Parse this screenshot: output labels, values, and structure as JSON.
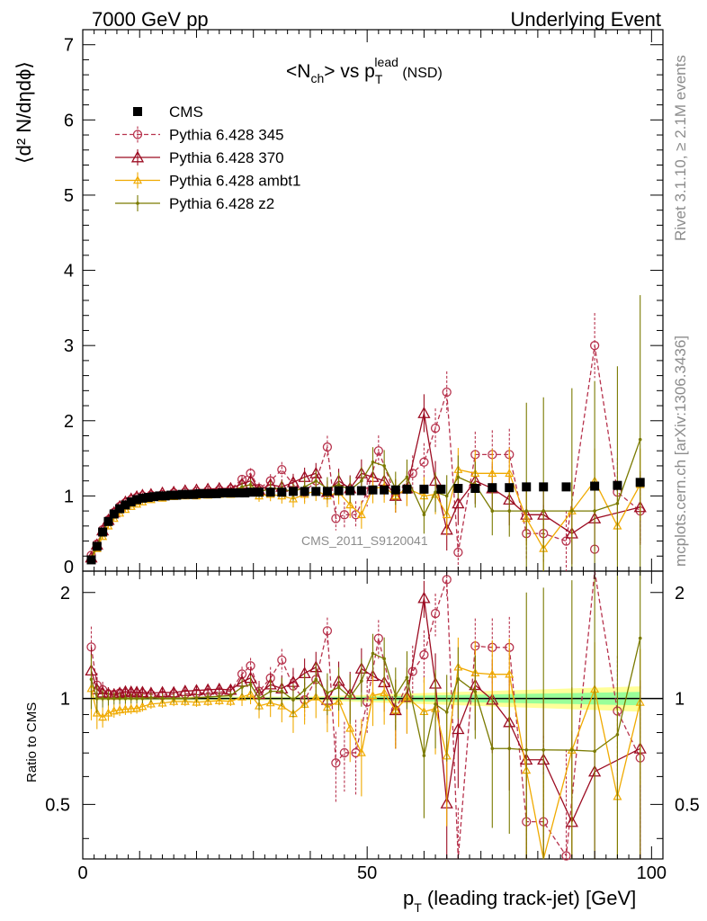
{
  "header": {
    "left": "7000 GeV pp",
    "right": "Underlying Event"
  },
  "title": {
    "main": "<N",
    "main_sub": "ch",
    "main_mid": "> vs p",
    "main_sub2": "T",
    "main_sup": "lead",
    "main_tail": " (NSD)"
  },
  "side_labels": {
    "rivet": "Rivet 3.1.10, ≥ 2.1M events",
    "mcplots": "mcplots.cern.ch [arXiv:1306.3436]"
  },
  "watermark": "CMS_2011_S9120041",
  "y_label_top": "⟨d² N/dηdϕ⟩",
  "y_label_bottom": "Ratio to CMS",
  "x_label": "p",
  "x_label_sub": "T",
  "x_label_tail": " (leading track-jet) [GeV]",
  "colors": {
    "cms": "#000000",
    "p345": "#b7334d",
    "p370": "#9c0c22",
    "ambt1": "#f0aa00",
    "z2": "#7a7a00",
    "band_outer": "#ffff99",
    "band_inner": "#99ff99"
  },
  "chart_data": {
    "type": "scatter",
    "xlim": [
      0,
      102
    ],
    "ylim_main": [
      0,
      7.2
    ],
    "ylim_ratio": [
      0.35,
      2.3
    ],
    "x_ticks": [
      "0",
      "50",
      "100"
    ],
    "y_ticks_main": [
      "0",
      "1",
      "2",
      "3",
      "4",
      "5",
      "6",
      "7"
    ],
    "y_ticks_ratio": [
      "0.5",
      "1",
      "2"
    ],
    "series": [
      {
        "name": "CMS",
        "x": [
          1.5,
          2.5,
          3.5,
          4.5,
          5.5,
          6.5,
          7.5,
          8.5,
          9.5,
          10.5,
          11.5,
          12.5,
          13.5,
          14.5,
          15.5,
          16.5,
          17.5,
          18.5,
          19.5,
          20.5,
          21.5,
          22.5,
          23.5,
          24.5,
          25.5,
          26.5,
          27.5,
          28.5,
          29.5,
          31,
          33,
          35,
          37,
          39,
          41,
          43,
          45,
          47,
          49,
          51,
          53,
          55,
          57,
          60,
          63,
          66,
          69,
          72,
          75,
          78,
          81,
          85,
          90,
          94,
          98
        ],
        "y": [
          0.15,
          0.33,
          0.52,
          0.66,
          0.76,
          0.83,
          0.88,
          0.92,
          0.95,
          0.97,
          0.98,
          0.99,
          1.0,
          1.0,
          1.01,
          1.01,
          1.02,
          1.02,
          1.02,
          1.03,
          1.03,
          1.03,
          1.03,
          1.04,
          1.04,
          1.04,
          1.04,
          1.04,
          1.05,
          1.05,
          1.05,
          1.05,
          1.06,
          1.06,
          1.06,
          1.06,
          1.07,
          1.07,
          1.07,
          1.08,
          1.08,
          1.08,
          1.09,
          1.09,
          1.09,
          1.1,
          1.1,
          1.11,
          1.11,
          1.12,
          1.12,
          1.12,
          1.13,
          1.14,
          1.18
        ]
      },
      {
        "name": "Pythia 6.428 345",
        "x": [
          1.5,
          2.5,
          3.5,
          4.5,
          5.5,
          6.5,
          7.5,
          8.5,
          9.5,
          10.5,
          12,
          14,
          16,
          18,
          20,
          22,
          24,
          26,
          28,
          29.5,
          31,
          33,
          35,
          37,
          39,
          41,
          43,
          44.5,
          46,
          48,
          50,
          52,
          55,
          58,
          60,
          62,
          64,
          66,
          69,
          72,
          75,
          78,
          81,
          85,
          90,
          94,
          98
        ],
        "y": [
          0.21,
          0.36,
          0.55,
          0.68,
          0.78,
          0.86,
          0.91,
          0.95,
          0.98,
          1.0,
          1.01,
          1.02,
          1.04,
          1.05,
          1.06,
          1.07,
          1.08,
          1.09,
          1.22,
          1.3,
          1.1,
          1.2,
          1.35,
          1.15,
          1.05,
          1.2,
          1.65,
          0.7,
          0.75,
          0.75,
          1.05,
          1.6,
          1.0,
          1.3,
          1.45,
          1.9,
          2.38,
          0.25,
          1.55,
          1.55,
          1.55,
          0.5,
          0.5,
          0.4,
          3.0,
          1.05,
          0.8
        ]
      },
      {
        "name": "Pythia 6.428 370",
        "x": [
          1.5,
          2.5,
          3.5,
          4.5,
          5.5,
          6.5,
          7.5,
          8.5,
          9.5,
          10.5,
          12,
          14,
          16,
          18,
          20,
          22,
          24,
          26,
          28,
          29.5,
          31,
          33,
          35,
          37,
          39,
          41,
          43,
          45,
          47,
          49,
          51,
          53,
          55,
          57,
          60,
          62,
          64,
          66,
          69,
          72,
          75,
          78,
          81,
          86,
          90,
          98
        ],
        "y": [
          0.18,
          0.35,
          0.54,
          0.68,
          0.78,
          0.86,
          0.92,
          0.96,
          0.99,
          1.01,
          1.02,
          1.04,
          1.05,
          1.07,
          1.08,
          1.09,
          1.1,
          1.1,
          1.16,
          1.2,
          1.08,
          1.15,
          1.12,
          1.18,
          1.25,
          1.3,
          1.05,
          1.2,
          1.1,
          1.3,
          1.25,
          1.2,
          1.0,
          1.1,
          2.1,
          1.2,
          0.55,
          0.9,
          1.2,
          1.1,
          0.95,
          0.75,
          0.75,
          0.5,
          0.7,
          0.85
        ]
      },
      {
        "name": "Pythia 6.428 ambt1",
        "x": [
          1.5,
          2.5,
          3.5,
          4.5,
          5.5,
          6.5,
          7.5,
          8.5,
          9.5,
          10.5,
          12,
          14,
          16,
          18,
          20,
          22,
          24,
          26,
          28,
          29.5,
          31,
          33,
          35,
          37,
          39,
          41,
          43,
          45,
          47,
          49,
          51,
          53,
          55,
          57,
          60,
          62,
          64,
          66,
          69,
          72,
          75,
          78,
          81,
          86,
          90,
          94,
          98
        ],
        "y": [
          0.16,
          0.3,
          0.46,
          0.6,
          0.7,
          0.77,
          0.82,
          0.86,
          0.89,
          0.92,
          0.95,
          0.97,
          0.99,
          1.0,
          1.0,
          1.01,
          1.02,
          1.02,
          1.05,
          1.08,
          1.0,
          1.02,
          1.0,
          0.96,
          1.02,
          1.07,
          1.0,
          1.05,
          0.88,
          0.75,
          1.1,
          1.12,
          1.0,
          1.1,
          1.0,
          1.02,
          0.75,
          1.35,
          1.3,
          1.3,
          1.3,
          0.7,
          0.3,
          0.8,
          1.2,
          0.6,
          1.15
        ]
      },
      {
        "name": "Pythia 6.428 z2",
        "x": [
          1.5,
          2.5,
          3.5,
          4.5,
          5.5,
          6.5,
          7.5,
          8.5,
          9.5,
          10.5,
          12,
          14,
          16,
          18,
          20,
          22,
          24,
          26,
          28,
          29.5,
          31,
          33,
          35,
          37,
          39,
          41,
          43,
          45,
          47,
          49,
          51,
          53,
          55,
          57,
          60,
          62,
          64,
          66,
          69,
          72,
          75,
          78,
          81,
          86,
          90,
          94,
          98
        ],
        "y": [
          0.17,
          0.33,
          0.52,
          0.66,
          0.76,
          0.83,
          0.88,
          0.92,
          0.95,
          0.97,
          0.99,
          1.0,
          1.01,
          1.02,
          1.03,
          1.04,
          1.05,
          1.06,
          1.12,
          1.15,
          1.05,
          1.1,
          1.1,
          1.05,
          1.12,
          1.2,
          1.1,
          1.15,
          1.08,
          1.2,
          1.45,
          1.4,
          1.1,
          1.25,
          0.75,
          1.05,
          1.0,
          1.25,
          1.15,
          0.8,
          0.8,
          0.8,
          0.8,
          0.8,
          0.8,
          0.9,
          1.75
        ]
      }
    ]
  }
}
